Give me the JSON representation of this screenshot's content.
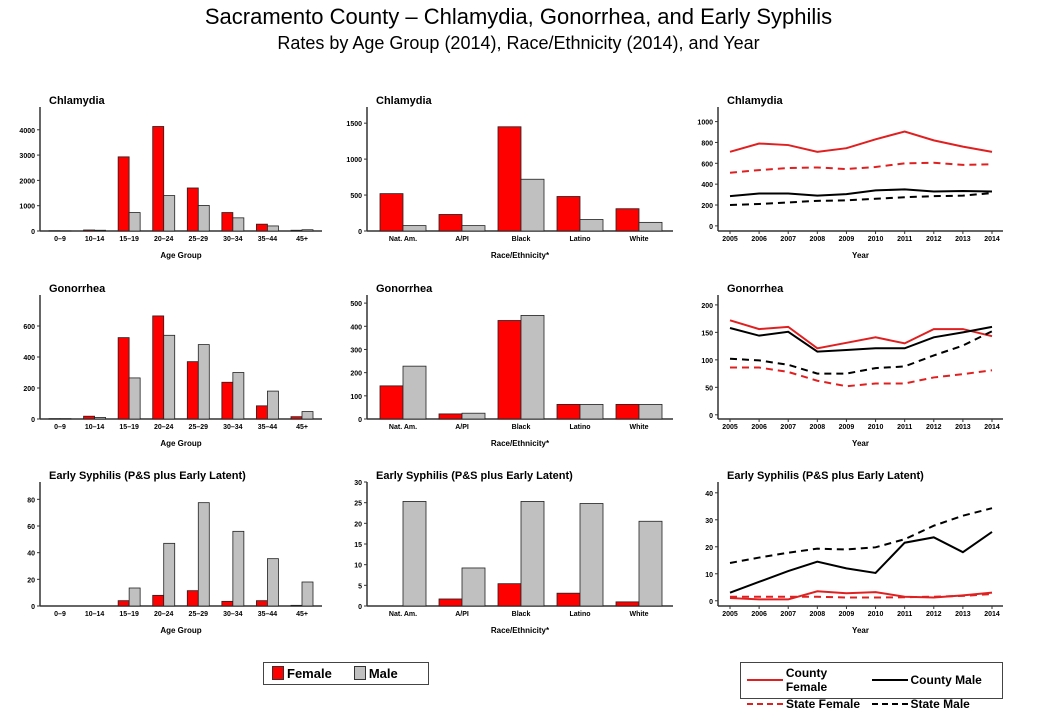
{
  "title": "Sacramento County – Chlamydia, Gonorrhea, and Early Syphilis",
  "subtitle": "Rates by Age Group (2014), Race/Ethnicity (2014), and Year",
  "colors": {
    "female": "#ff0000",
    "male": "#c0c0c0",
    "county_female": "#e02020",
    "state_female": "#e02020",
    "county_male": "#000000",
    "state_male": "#000000"
  },
  "bar_legend": {
    "female": "Female",
    "male": "Male"
  },
  "line_legend": {
    "county_female": "County Female",
    "county_male": "County Male",
    "state_female": "State Female",
    "state_male": "State Male"
  },
  "chart_data": [
    {
      "type": "bar",
      "title": "Chlamydia",
      "xlabel": "Age Group",
      "ylabel": "",
      "categories": [
        "0–9",
        "10–14",
        "15–19",
        "20–24",
        "25–29",
        "30–34",
        "35–44",
        "45+"
      ],
      "ylim": [
        0,
        4900
      ],
      "yticks": [
        0,
        1000,
        2000,
        3000,
        4000
      ],
      "series": [
        {
          "name": "Female",
          "values": [
            10,
            40,
            2930,
            4130,
            1700,
            730,
            270,
            30
          ]
        },
        {
          "name": "Male",
          "values": [
            5,
            30,
            730,
            1400,
            1010,
            520,
            200,
            50
          ]
        }
      ]
    },
    {
      "type": "bar",
      "title": "Chlamydia",
      "xlabel": "Race/Ethnicity*",
      "ylabel": "",
      "categories": [
        "Nat. Am.",
        "A/PI",
        "Black",
        "Latino",
        "White"
      ],
      "ylim": [
        0,
        1725
      ],
      "yticks": [
        0,
        500,
        1000,
        1500
      ],
      "series": [
        {
          "name": "Female",
          "values": [
            520,
            230,
            1450,
            480,
            310
          ]
        },
        {
          "name": "Male",
          "values": [
            75,
            75,
            720,
            160,
            120
          ]
        }
      ]
    },
    {
      "type": "line",
      "title": "Chlamydia",
      "xlabel": "Year",
      "ylabel": "",
      "x": [
        2005,
        2006,
        2007,
        2008,
        2009,
        2010,
        2011,
        2012,
        2013,
        2014
      ],
      "ylim": [
        -30,
        1140
      ],
      "yticks": [
        0,
        200,
        400,
        600,
        800,
        1000
      ],
      "series": [
        {
          "name": "County Female",
          "values": [
            710,
            790,
            775,
            710,
            745,
            830,
            905,
            820,
            760,
            710
          ]
        },
        {
          "name": "State Female",
          "values": [
            510,
            535,
            555,
            560,
            545,
            565,
            600,
            605,
            585,
            590
          ]
        },
        {
          "name": "County Male",
          "values": [
            285,
            310,
            310,
            290,
            305,
            340,
            350,
            330,
            335,
            330
          ]
        },
        {
          "name": "State Male",
          "values": [
            200,
            210,
            225,
            240,
            245,
            260,
            275,
            285,
            290,
            315
          ]
        }
      ]
    },
    {
      "type": "bar",
      "title": "Gonorrhea",
      "xlabel": "Age Group",
      "ylabel": "",
      "categories": [
        "0–9",
        "10–14",
        "15–19",
        "20–24",
        "25–29",
        "30–34",
        "35–44",
        "45+"
      ],
      "ylim": [
        0,
        800
      ],
      "yticks": [
        0,
        200,
        400,
        600
      ],
      "series": [
        {
          "name": "Female",
          "values": [
            2,
            18,
            525,
            665,
            370,
            237,
            85,
            15
          ]
        },
        {
          "name": "Male",
          "values": [
            2,
            10,
            265,
            540,
            480,
            300,
            180,
            48
          ]
        }
      ]
    },
    {
      "type": "bar",
      "title": "Gonorrhea",
      "xlabel": "Race/Ethnicity*",
      "ylabel": "",
      "categories": [
        "Nat. Am.",
        "A/PI",
        "Black",
        "Latino",
        "White"
      ],
      "ylim": [
        0,
        535
      ],
      "yticks": [
        0,
        100,
        200,
        300,
        400,
        500
      ],
      "series": [
        {
          "name": "Female",
          "values": [
            143,
            22,
            425,
            63,
            63
          ]
        },
        {
          "name": "Male",
          "values": [
            228,
            25,
            447,
            63,
            63
          ]
        }
      ]
    },
    {
      "type": "line",
      "title": "Gonorrhea",
      "xlabel": "Year",
      "ylabel": "",
      "x": [
        2005,
        2006,
        2007,
        2008,
        2009,
        2010,
        2011,
        2012,
        2013,
        2014
      ],
      "ylim": [
        -4,
        218
      ],
      "yticks": [
        0,
        50,
        100,
        150,
        200
      ],
      "series": [
        {
          "name": "County Female",
          "values": [
            172,
            156,
            160,
            121,
            131,
            141,
            130,
            156,
            156,
            143
          ]
        },
        {
          "name": "State Female",
          "values": [
            86,
            86,
            78,
            62,
            52,
            57,
            57,
            68,
            74,
            81
          ]
        },
        {
          "name": "County Male",
          "values": [
            158,
            144,
            151,
            115,
            118,
            121,
            121,
            141,
            150,
            160
          ]
        },
        {
          "name": "State Male",
          "values": [
            102,
            99,
            91,
            75,
            75,
            85,
            88,
            108,
            126,
            152
          ]
        }
      ]
    },
    {
      "type": "bar",
      "title": "Early Syphilis (P&S plus Early Latent)",
      "xlabel": "Age Group",
      "ylabel": "",
      "categories": [
        "0–9",
        "10–14",
        "15–19",
        "20–24",
        "25–29",
        "30–34",
        "35–44",
        "45+"
      ],
      "ylim": [
        0,
        93
      ],
      "yticks": [
        0,
        20,
        40,
        60,
        80
      ],
      "series": [
        {
          "name": "Female",
          "values": [
            0,
            0,
            4,
            8,
            11.5,
            3.5,
            4,
            0.5
          ]
        },
        {
          "name": "Male",
          "values": [
            0,
            0,
            13.5,
            47,
            77.5,
            56,
            35.5,
            18
          ]
        }
      ]
    },
    {
      "type": "bar",
      "title": "Early Syphilis (P&S plus Early Latent)",
      "xlabel": "Race/Ethnicity*",
      "ylabel": "",
      "categories": [
        "Nat. Am.",
        "A/PI",
        "Black",
        "Latino",
        "White"
      ],
      "ylim": [
        0,
        30
      ],
      "yticks": [
        0,
        5,
        10,
        15,
        20,
        25,
        30
      ],
      "series": [
        {
          "name": "Female",
          "values": [
            0,
            1.7,
            5.4,
            3.1,
            1
          ]
        },
        {
          "name": "Male",
          "values": [
            25.3,
            9.2,
            25.3,
            24.8,
            20.5
          ]
        }
      ]
    },
    {
      "type": "line",
      "title": "Early Syphilis (P&S plus Early Latent)",
      "xlabel": "Year",
      "ylabel": "",
      "x": [
        2005,
        2006,
        2007,
        2008,
        2009,
        2010,
        2011,
        2012,
        2013,
        2014
      ],
      "ylim": [
        -1.2,
        44
      ],
      "yticks": [
        0,
        10,
        20,
        30,
        40
      ],
      "series": [
        {
          "name": "County Female",
          "values": [
            1,
            0.5,
            0.5,
            3.5,
            2.8,
            3.2,
            1.5,
            1.2,
            2,
            3
          ]
        },
        {
          "name": "State Female",
          "values": [
            1.5,
            1.5,
            1.5,
            1.5,
            1.2,
            1.2,
            1.3,
            1.5,
            1.8,
            2.5
          ]
        },
        {
          "name": "County Male",
          "values": [
            3,
            7,
            11,
            14.5,
            12,
            10.3,
            21.5,
            23.5,
            18,
            25.5
          ]
        },
        {
          "name": "State Male",
          "values": [
            14,
            16,
            17.8,
            19.3,
            19,
            19.8,
            22.8,
            27.8,
            31.5,
            34.3
          ]
        }
      ]
    }
  ]
}
